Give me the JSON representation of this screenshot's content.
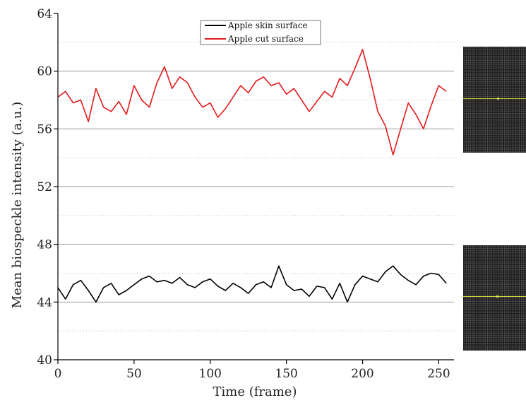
{
  "chart_data": {
    "type": "line",
    "title": "",
    "xlabel": "Time (frame)",
    "ylabel": "Mean biospeckle intensity (a.u.)",
    "xlim": [
      0,
      260
    ],
    "ylim": [
      40,
      64
    ],
    "xticks": [
      0,
      50,
      100,
      150,
      200,
      250
    ],
    "yticks": [
      40,
      44,
      48,
      52,
      56,
      60,
      64
    ],
    "grid": true,
    "legend_position": "top-center",
    "series": [
      {
        "name": "Apple skin surface",
        "color": "#000000",
        "x": [
          0,
          5,
          10,
          15,
          20,
          25,
          30,
          35,
          40,
          45,
          50,
          55,
          60,
          65,
          70,
          75,
          80,
          85,
          90,
          95,
          100,
          105,
          110,
          115,
          120,
          125,
          130,
          135,
          140,
          145,
          150,
          155,
          160,
          165,
          170,
          175,
          180,
          185,
          190,
          195,
          200,
          205,
          210,
          215,
          220,
          225,
          230,
          235,
          240,
          245,
          250,
          255
        ],
        "y": [
          45.0,
          44.2,
          45.2,
          45.5,
          44.8,
          44.0,
          45.0,
          45.3,
          44.5,
          44.8,
          45.2,
          45.6,
          45.8,
          45.4,
          45.5,
          45.3,
          45.7,
          45.2,
          45.0,
          45.4,
          45.6,
          45.1,
          44.8,
          45.3,
          45.0,
          44.6,
          45.2,
          45.4,
          45.0,
          46.5,
          45.2,
          44.8,
          44.9,
          44.4,
          45.1,
          45.0,
          44.2,
          45.3,
          44.0,
          45.2,
          45.8,
          45.6,
          45.4,
          46.1,
          46.5,
          45.9,
          45.5,
          45.2,
          45.8,
          46.0,
          45.9,
          45.3
        ]
      },
      {
        "name": "Apple cut surface",
        "color": "#e31a1c",
        "x": [
          0,
          5,
          10,
          15,
          20,
          25,
          30,
          35,
          40,
          45,
          50,
          55,
          60,
          65,
          70,
          75,
          80,
          85,
          90,
          95,
          100,
          105,
          110,
          115,
          120,
          125,
          130,
          135,
          140,
          145,
          150,
          155,
          160,
          165,
          170,
          175,
          180,
          185,
          190,
          195,
          200,
          205,
          210,
          215,
          220,
          225,
          230,
          235,
          240,
          245,
          250,
          255
        ],
        "y": [
          58.2,
          58.6,
          57.8,
          58.0,
          56.5,
          58.8,
          57.5,
          57.2,
          57.9,
          57.0,
          59.0,
          58.0,
          57.5,
          59.2,
          60.3,
          58.8,
          59.6,
          59.2,
          58.2,
          57.5,
          57.8,
          56.8,
          57.4,
          58.2,
          59.0,
          58.5,
          59.3,
          59.6,
          59.0,
          59.2,
          58.4,
          58.8,
          58.0,
          57.2,
          57.9,
          58.6,
          58.2,
          59.5,
          59.0,
          60.2,
          61.5,
          59.5,
          57.2,
          56.2,
          54.2,
          56.0,
          57.8,
          57.0,
          56.0,
          57.6,
          59.0,
          58.6
        ]
      }
    ]
  }
}
